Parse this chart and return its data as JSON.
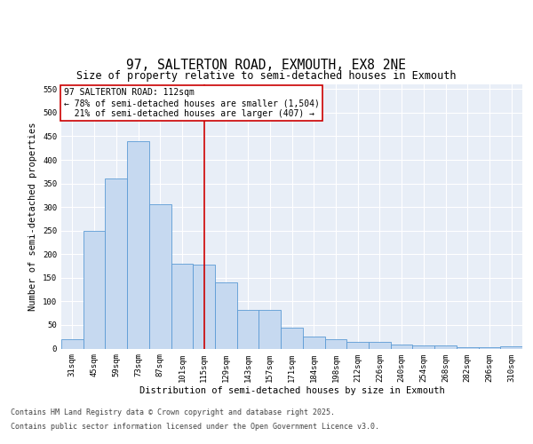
{
  "title_line1": "97, SALTERTON ROAD, EXMOUTH, EX8 2NE",
  "title_line2": "Size of property relative to semi-detached houses in Exmouth",
  "xlabel": "Distribution of semi-detached houses by size in Exmouth",
  "ylabel": "Number of semi-detached properties",
  "categories": [
    "31sqm",
    "45sqm",
    "59sqm",
    "73sqm",
    "87sqm",
    "101sqm",
    "115sqm",
    "129sqm",
    "143sqm",
    "157sqm",
    "171sqm",
    "184sqm",
    "198sqm",
    "212sqm",
    "226sqm",
    "240sqm",
    "254sqm",
    "268sqm",
    "282sqm",
    "296sqm",
    "310sqm"
  ],
  "values": [
    20,
    250,
    360,
    440,
    305,
    180,
    178,
    140,
    82,
    82,
    45,
    25,
    20,
    15,
    15,
    8,
    6,
    6,
    3,
    2,
    5
  ],
  "bar_color": "#c6d9f0",
  "bar_edge_color": "#5b9bd5",
  "background_color": "#e8eef7",
  "grid_color": "#ffffff",
  "vline_x_index": 6,
  "vline_color": "#cc0000",
  "annotation_text": "97 SALTERTON ROAD: 112sqm\n← 78% of semi-detached houses are smaller (1,504)\n  21% of semi-detached houses are larger (407) →",
  "annotation_box_color": "#ffffff",
  "annotation_box_edge_color": "#cc0000",
  "ylim": [
    0,
    560
  ],
  "yticks": [
    0,
    50,
    100,
    150,
    200,
    250,
    300,
    350,
    400,
    450,
    500,
    550
  ],
  "footer_line1": "Contains HM Land Registry data © Crown copyright and database right 2025.",
  "footer_line2": "Contains public sector information licensed under the Open Government Licence v3.0.",
  "title_fontsize": 10.5,
  "subtitle_fontsize": 8.5,
  "axis_label_fontsize": 7.5,
  "tick_fontsize": 6.5,
  "annotation_fontsize": 7,
  "footer_fontsize": 6,
  "ylabel_fontsize": 7.5
}
